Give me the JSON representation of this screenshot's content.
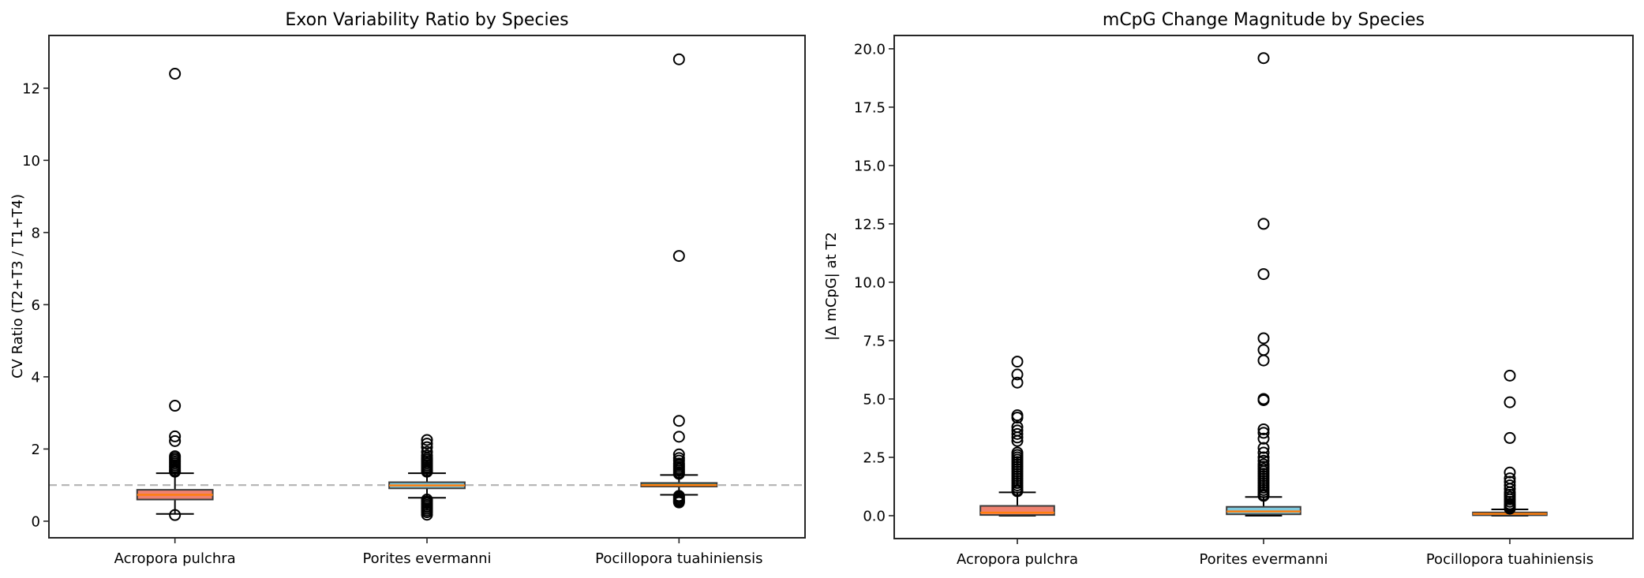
{
  "chart_data": [
    {
      "type": "box",
      "title": "Exon Variability Ratio by Species",
      "xlabel": "",
      "ylabel": "CV Ratio (T2+T3 / T1+T4)",
      "ylim": [
        -0.46,
        13.46
      ],
      "yticks": [
        0,
        2,
        4,
        6,
        8,
        10,
        12
      ],
      "ytick_labels": [
        "0",
        "2",
        "4",
        "6",
        "8",
        "10",
        "12"
      ],
      "grid": false,
      "reference_line": {
        "y": 1.0,
        "style": "dashed",
        "color": "#b3b3b3"
      },
      "categories": [
        "Acropora pulchra",
        "Porites evermanni",
        "Pocillopora tuahiniensis"
      ],
      "series": [
        {
          "name": "Acropora pulchra",
          "color": "#ef8270",
          "whisker_low": 0.2,
          "q1": 0.6,
          "median": 0.73,
          "q3": 0.87,
          "whisker_high": 1.33,
          "outliers": [
            12.4,
            3.2,
            2.35,
            2.22,
            1.8,
            1.75,
            1.7,
            1.65,
            1.6,
            1.55,
            1.5,
            1.45,
            1.4,
            1.37,
            0.17
          ]
        },
        {
          "name": "Porites evermanni",
          "color": "#7ec8dc",
          "whisker_low": 0.65,
          "q1": 0.91,
          "median": 0.99,
          "q3": 1.08,
          "whisker_high": 1.33,
          "outliers": [
            2.25,
            2.15,
            2.05,
            1.92,
            1.82,
            1.75,
            1.7,
            1.65,
            1.6,
            1.55,
            1.5,
            1.45,
            1.4,
            1.37,
            0.6,
            0.55,
            0.5,
            0.45,
            0.4,
            0.35,
            0.3,
            0.25,
            0.18
          ]
        },
        {
          "name": "Pocillopora tuahiniensis",
          "color": "#4e9e7e",
          "whisker_low": 0.73,
          "q1": 0.96,
          "median": 1.0,
          "q3": 1.06,
          "whisker_high": 1.28,
          "outliers": [
            12.8,
            7.35,
            2.78,
            2.34,
            1.85,
            1.75,
            1.68,
            1.6,
            1.55,
            1.5,
            1.45,
            1.4,
            1.35,
            1.31,
            0.7,
            0.66,
            0.62,
            0.58,
            0.55,
            0.52
          ]
        }
      ]
    },
    {
      "type": "box",
      "title": "mCpG Change Magnitude by Species",
      "xlabel": "",
      "ylabel": "|Δ mCpG| at T2",
      "ylim": [
        -0.98,
        20.57
      ],
      "yticks": [
        0,
        2.5,
        5,
        7.5,
        10,
        12.5,
        15,
        17.5,
        20
      ],
      "ytick_labels": [
        "0.0",
        "2.5",
        "5.0",
        "7.5",
        "10.0",
        "12.5",
        "15.0",
        "17.5",
        "20.0"
      ],
      "grid": false,
      "categories": [
        "Acropora pulchra",
        "Porites evermanni",
        "Pocillopora tuahiniensis"
      ],
      "series": [
        {
          "name": "Acropora pulchra",
          "color": "#ef8270",
          "whisker_low": 0.0,
          "q1": 0.03,
          "median": 0.13,
          "q3": 0.42,
          "whisker_high": 1.0,
          "outliers": [
            6.6,
            6.05,
            5.7,
            4.3,
            4.2,
            3.8,
            3.65,
            3.5,
            3.35,
            3.2,
            2.7,
            2.6,
            2.5,
            2.4,
            2.3,
            2.2,
            2.1,
            2.0,
            1.9,
            1.8,
            1.7,
            1.6,
            1.5,
            1.4,
            1.3,
            1.2,
            1.1,
            1.05
          ]
        },
        {
          "name": "Porites evermanni",
          "color": "#7ec8dc",
          "whisker_low": 0.0,
          "q1": 0.06,
          "median": 0.18,
          "q3": 0.38,
          "whisker_high": 0.8,
          "outliers": [
            19.6,
            12.5,
            10.35,
            7.6,
            7.1,
            6.65,
            5.0,
            4.95,
            3.7,
            3.55,
            3.3,
            2.9,
            2.7,
            2.5,
            2.35,
            2.2,
            2.1,
            2.0,
            1.9,
            1.8,
            1.7,
            1.6,
            1.5,
            1.4,
            1.3,
            1.2,
            1.1,
            1.0,
            0.9,
            0.85
          ]
        },
        {
          "name": "Pocillopora tuahiniensis",
          "color": "#f4a261",
          "whisker_low": 0.0,
          "q1": 0.02,
          "median": 0.08,
          "q3": 0.14,
          "whisker_high": 0.27,
          "outliers": [
            6.0,
            4.86,
            3.33,
            1.85,
            1.6,
            1.45,
            1.3,
            1.15,
            1.0,
            0.9,
            0.8,
            0.7,
            0.6,
            0.5,
            0.45,
            0.4,
            0.35,
            0.3
          ]
        }
      ]
    }
  ],
  "style": {
    "median_color": "#ff7f0e",
    "box_edge_color": "#3b3b3b",
    "axis_color": "#262626",
    "ref_line_color": "#b3b3b3"
  }
}
